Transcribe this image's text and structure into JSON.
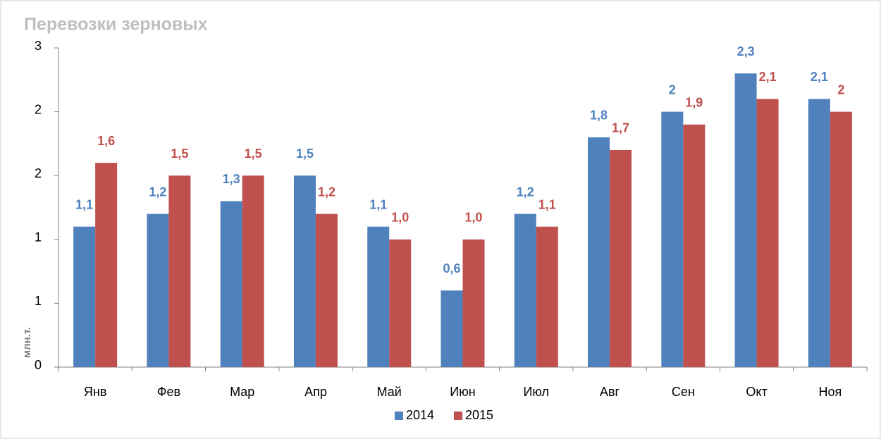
{
  "chart_data": {
    "type": "bar",
    "title": "Перевозки зерновых",
    "y_label": "млн.т.",
    "categories": [
      "Янв",
      "Фев",
      "Мар",
      "Апр",
      "Май",
      "Июн",
      "Июл",
      "Авг",
      "Сен",
      "Окт",
      "Ноя"
    ],
    "series": [
      {
        "name": "2014",
        "color": "#4f81bd",
        "values": [
          1.1,
          1.2,
          1.3,
          1.5,
          1.1,
          0.6,
          1.2,
          1.8,
          2.0,
          2.3,
          2.1
        ],
        "value_labels": [
          "1,1",
          "1,2",
          "1,3",
          "1,5",
          "1,1",
          "0,6",
          "1,2",
          "1,8",
          "2",
          "2,3",
          "2,1"
        ]
      },
      {
        "name": "2015",
        "color": "#c0504d",
        "values": [
          1.6,
          1.5,
          1.5,
          1.2,
          1.0,
          1.0,
          1.1,
          1.7,
          1.9,
          2.1,
          2.0
        ],
        "value_labels": [
          "1,6",
          "1,5",
          "1,5",
          "1,2",
          "1,0",
          "1,0",
          "1,1",
          "1,7",
          "1,9",
          "2,1",
          "2"
        ]
      }
    ],
    "ylim": [
      0,
      2.5
    ],
    "yticks": [
      0,
      {
        "value": 0.5,
        "label": "1"
      },
      {
        "value": 1,
        "label": "1"
      },
      {
        "value": 1.5,
        "label": "2"
      },
      {
        "value": 2,
        "label": "2"
      },
      {
        "value": 2.5,
        "label": "3"
      }
    ],
    "grid": false
  }
}
